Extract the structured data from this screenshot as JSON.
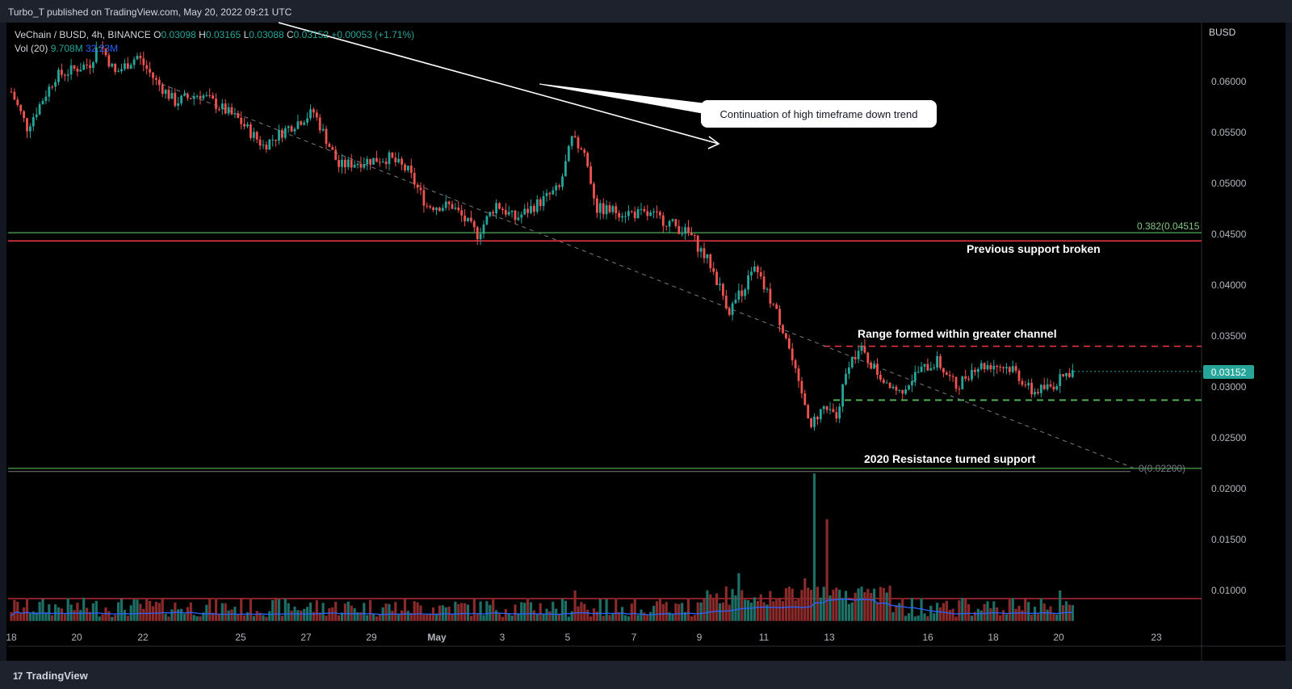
{
  "header": {
    "published": "Turbo_T published on TradingView.com, May 20, 2022 09:21 UTC"
  },
  "legend": {
    "symbol": "VeChain / BUSD, 4h, BINANCE",
    "open_label": "O",
    "open": "0.03098",
    "high_label": "H",
    "high": "0.03165",
    "low_label": "L",
    "low": "0.03088",
    "close_label": "C",
    "close": "0.03152",
    "change": "+0.00053 (+1.71%)",
    "vol_label": "Vol (20)",
    "vol_value": "9.708M",
    "vol_ma": "32.23M"
  },
  "annotations": {
    "callout": "Continuation of high timeframe down trend",
    "support_broken": "Previous support broken",
    "range": "Range formed within greater channel",
    "resistance_support": "2020 Resistance turned support",
    "fib_upper": "0.382(0.04515",
    "fib_lower": "0(0.02200)"
  },
  "price_badge": "0.03152",
  "footer": {
    "brand": "TradingView",
    "brand_mark": "17"
  },
  "colors": {
    "up": "#26a69a",
    "down": "#ef5350",
    "volume_ma": "#2962ff",
    "fib": "#4caf50",
    "support": "#f23645"
  },
  "chart_data": {
    "type": "candlestick",
    "title": "VeChain / BUSD, 4h, BINANCE",
    "currency_label": "BUSD",
    "y_ticks": [
      "0.06000",
      "0.05500",
      "0.05000",
      "0.04500",
      "0.04000",
      "0.03500",
      "0.03000",
      "0.02500",
      "0.02000",
      "0.01500",
      "0.01000"
    ],
    "x_ticks": [
      "18",
      "20",
      "22",
      "25",
      "27",
      "29",
      "May",
      "3",
      "5",
      "7",
      "9",
      "11",
      "13",
      "16",
      "18",
      "20",
      "23"
    ],
    "ylim": [
      0.0055,
      0.0655
    ],
    "levels": {
      "fib_0382": 0.04515,
      "fib_0": 0.022,
      "previous_support": 0.04435,
      "range_top": 0.034,
      "range_bottom": 0.0287,
      "volume_line": 0.0092
    },
    "price_waypoints": [
      [
        0,
        0.059
      ],
      [
        5,
        0.0555
      ],
      [
        14,
        0.0605
      ],
      [
        25,
        0.0618
      ],
      [
        28,
        0.0638
      ],
      [
        33,
        0.0608
      ],
      [
        40,
        0.0625
      ],
      [
        46,
        0.06
      ],
      [
        52,
        0.058
      ],
      [
        60,
        0.0588
      ],
      [
        72,
        0.0563
      ],
      [
        80,
        0.0537
      ],
      [
        88,
        0.0555
      ],
      [
        96,
        0.057
      ],
      [
        104,
        0.0517
      ],
      [
        112,
        0.0522
      ],
      [
        120,
        0.0525
      ],
      [
        126,
        0.0512
      ],
      [
        132,
        0.0478
      ],
      [
        140,
        0.0478
      ],
      [
        148,
        0.045
      ],
      [
        154,
        0.048
      ],
      [
        160,
        0.0465
      ],
      [
        168,
        0.0482
      ],
      [
        174,
        0.0495
      ],
      [
        178,
        0.0543
      ],
      [
        182,
        0.053
      ],
      [
        186,
        0.0475
      ],
      [
        194,
        0.0472
      ],
      [
        204,
        0.0468
      ],
      [
        210,
        0.046
      ],
      [
        216,
        0.0448
      ],
      [
        222,
        0.042
      ],
      [
        228,
        0.0375
      ],
      [
        236,
        0.0415
      ],
      [
        242,
        0.038
      ],
      [
        246,
        0.035
      ],
      [
        250,
        0.03
      ],
      [
        254,
        0.0265
      ],
      [
        258,
        0.028
      ],
      [
        262,
        0.027
      ],
      [
        266,
        0.0325
      ],
      [
        270,
        0.0335
      ],
      [
        276,
        0.031
      ],
      [
        282,
        0.0295
      ],
      [
        288,
        0.0315
      ],
      [
        294,
        0.0325
      ],
      [
        300,
        0.03
      ],
      [
        306,
        0.032
      ],
      [
        312,
        0.0322
      ],
      [
        318,
        0.0318
      ],
      [
        324,
        0.0295
      ],
      [
        330,
        0.03
      ],
      [
        336,
        0.0315
      ]
    ],
    "volume_spikes": [
      [
        255,
        0.0215
      ],
      [
        259,
        0.017
      ],
      [
        231,
        0.0117
      ],
      [
        179,
        0.01
      ],
      [
        252,
        0.0112
      ],
      [
        269,
        0.0102
      ],
      [
        278,
        0.0098
      ],
      [
        333,
        0.01
      ]
    ],
    "volume_base": 0.007,
    "last_close": 0.03152
  }
}
